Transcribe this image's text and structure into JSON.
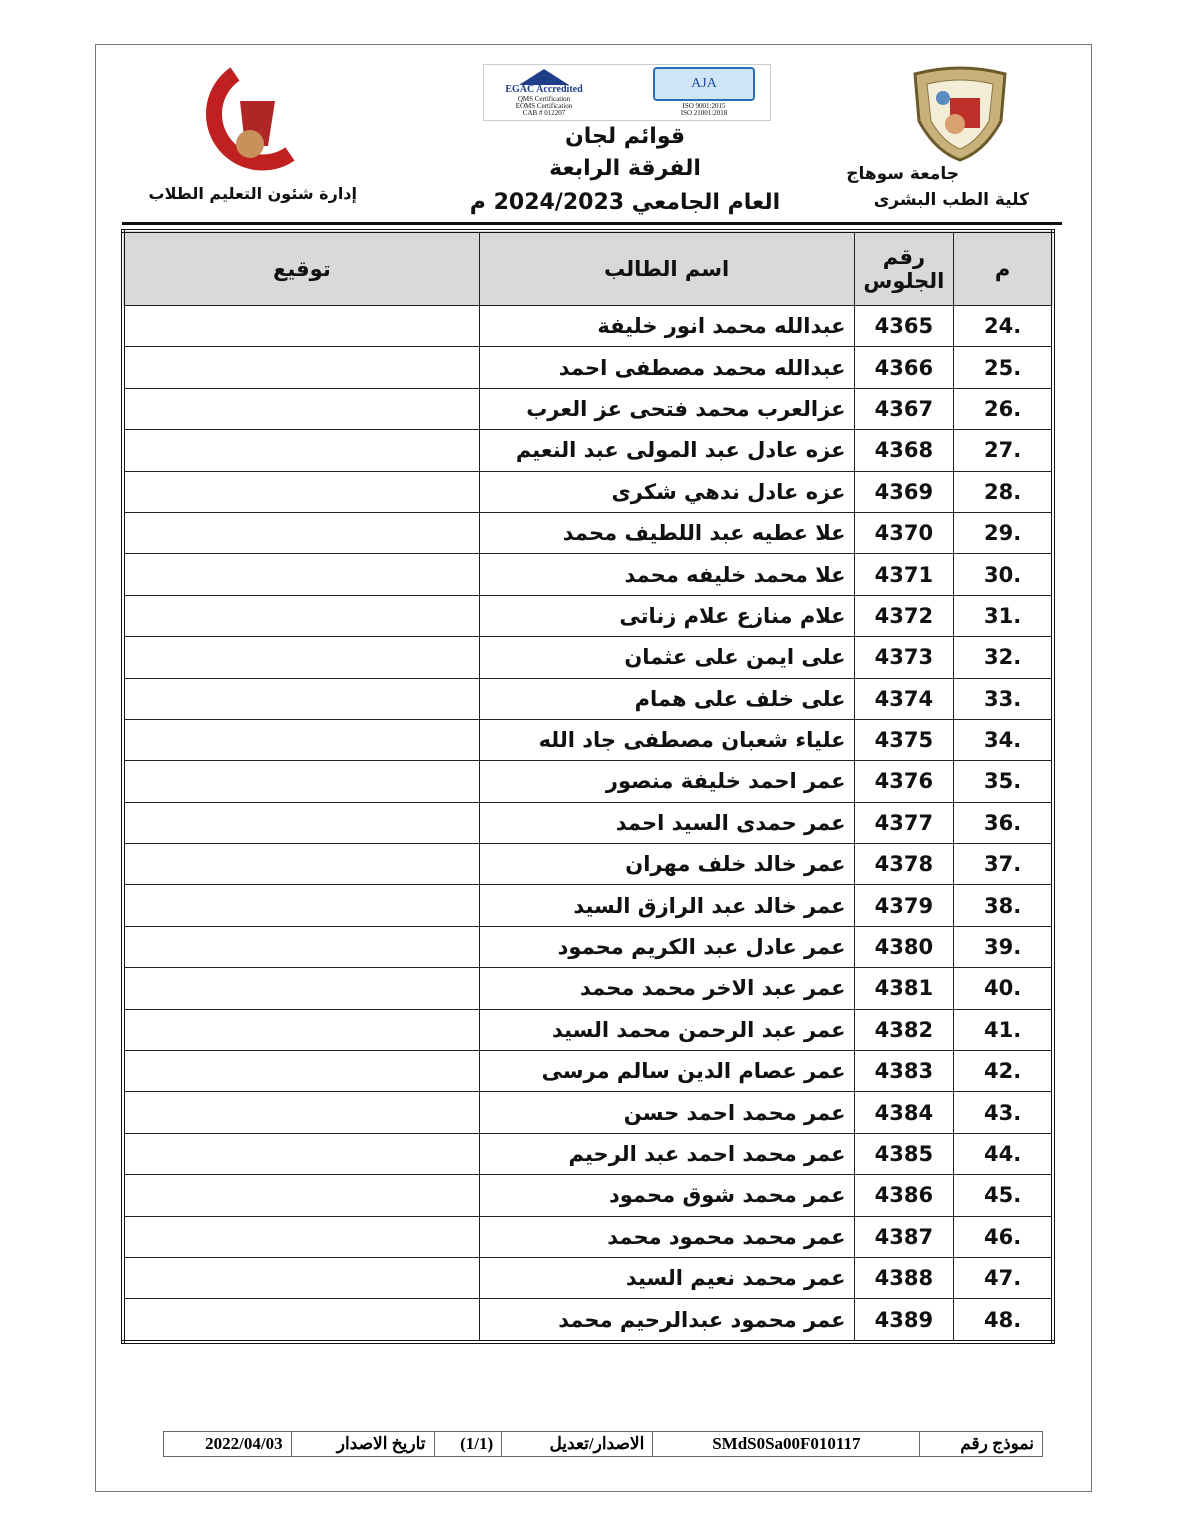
{
  "header": {
    "right_logo_text": "جامعة سوهاج",
    "right_line1": "جامعة سوهاج",
    "right_line2": "كلية الطب البشرى",
    "left_logo_text": [
      "جامعة سوهاج",
      "كلية الطب"
    ],
    "left_caption": "إدارة شئون التعليم الطلاب",
    "cert_logos": [
      "EGAC Accredited",
      "QMS Certification",
      "EOMS Certification",
      "CAB # 012207",
      "AJA",
      "ISO 9001:2015",
      "ISO 21001:2018"
    ],
    "title1": "قوائم لجان",
    "title2": "الفرقة الرابعة",
    "title3": "العام الجامعي 2024/2023 م"
  },
  "table": {
    "headers": {
      "index": "م",
      "seat": "رقم الجلوس",
      "name": "اسم الطالب",
      "signature": "توقيع"
    },
    "rows": [
      {
        "i": ".24",
        "seat": "4365",
        "name": "عبدالله محمد انور خليفة"
      },
      {
        "i": ".25",
        "seat": "4366",
        "name": "عبدالله محمد مصطفى احمد"
      },
      {
        "i": ".26",
        "seat": "4367",
        "name": "عزالعرب محمد فتحى عز العرب"
      },
      {
        "i": ".27",
        "seat": "4368",
        "name": "عزه عادل عبد المولى عبد النعيم"
      },
      {
        "i": ".28",
        "seat": "4369",
        "name": "عزه عادل ندهي شكرى"
      },
      {
        "i": ".29",
        "seat": "4370",
        "name": "علا عطيه عبد اللطيف محمد"
      },
      {
        "i": ".30",
        "seat": "4371",
        "name": "علا محمد خليفه محمد"
      },
      {
        "i": ".31",
        "seat": "4372",
        "name": "علام منازع علام زناتى"
      },
      {
        "i": ".32",
        "seat": "4373",
        "name": "على ايمن على عثمان"
      },
      {
        "i": ".33",
        "seat": "4374",
        "name": "على خلف على همام"
      },
      {
        "i": ".34",
        "seat": "4375",
        "name": "علياء شعبان مصطفى جاد الله"
      },
      {
        "i": ".35",
        "seat": "4376",
        "name": "عمر احمد خليفة منصور"
      },
      {
        "i": ".36",
        "seat": "4377",
        "name": "عمر حمدى السيد احمد"
      },
      {
        "i": ".37",
        "seat": "4378",
        "name": "عمر خالد خلف مهران"
      },
      {
        "i": ".38",
        "seat": "4379",
        "name": "عمر خالد عبد الرازق السيد"
      },
      {
        "i": ".39",
        "seat": "4380",
        "name": "عمر عادل عبد الكريم محمود"
      },
      {
        "i": ".40",
        "seat": "4381",
        "name": "عمر عبد الاخر محمد محمد"
      },
      {
        "i": ".41",
        "seat": "4382",
        "name": "عمر عبد الرحمن محمد السيد"
      },
      {
        "i": ".42",
        "seat": "4383",
        "name": "عمر عصام الدين سالم مرسى"
      },
      {
        "i": ".43",
        "seat": "4384",
        "name": "عمر محمد احمد حسن"
      },
      {
        "i": ".44",
        "seat": "4385",
        "name": "عمر محمد احمد عبد الرحيم"
      },
      {
        "i": ".45",
        "seat": "4386",
        "name": "عمر محمد شوق محمود"
      },
      {
        "i": ".46",
        "seat": "4387",
        "name": "عمر محمد محمود محمد"
      },
      {
        "i": ".47",
        "seat": "4388",
        "name": "عمر محمد نعيم السيد"
      },
      {
        "i": ".48",
        "seat": "4389",
        "name": "عمر محمود عبدالرحيم محمد"
      }
    ]
  },
  "footer": {
    "form_label": "نموذج رقم",
    "form_value": "SMdS0Sa00F010117",
    "version_label": "الاصدار/تعديل",
    "version_value": "(1/1)",
    "date_label": "تاريخ الاصدار",
    "date_value": "2022/04/03"
  }
}
